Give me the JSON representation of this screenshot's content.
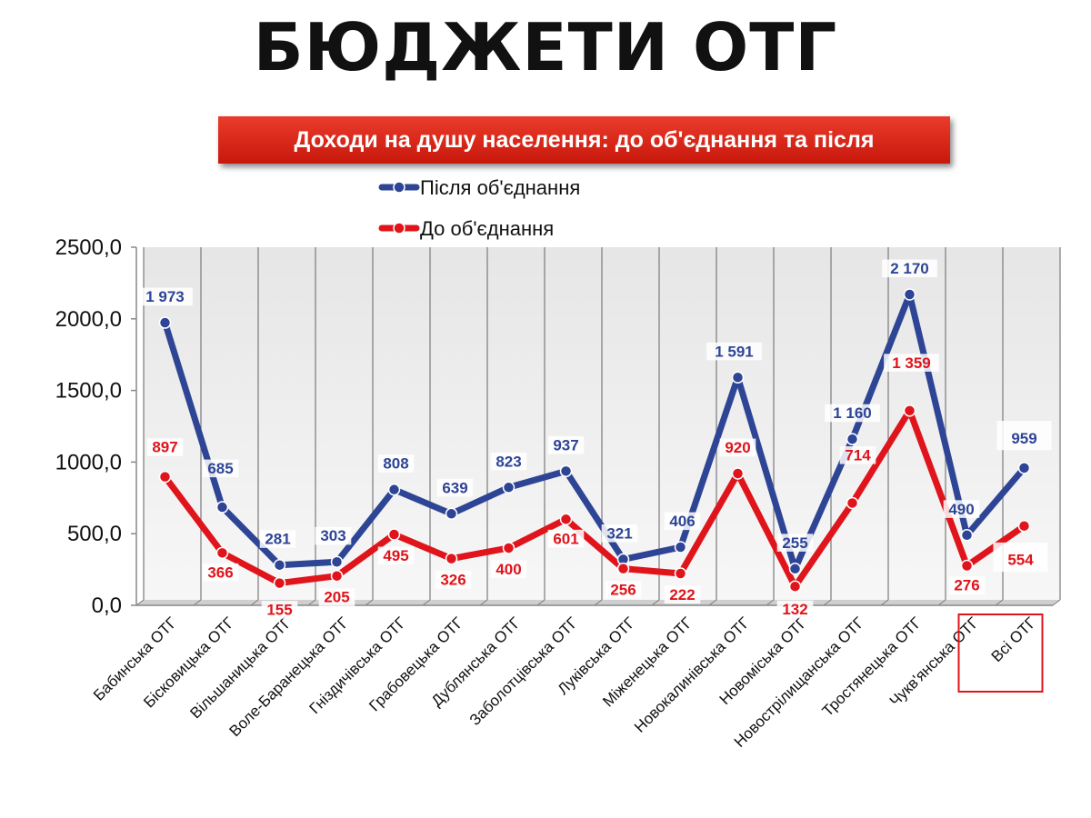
{
  "page": {
    "title": "БЮДЖЕТИ ОТГ",
    "subtitle": "Доходи на душу населення: до об'єднання та після"
  },
  "colors": {
    "after": "#2e4596",
    "before": "#e0141b",
    "grid": "#7a7a7a",
    "highlight_box": "#e0141b"
  },
  "chart_data": {
    "type": "line",
    "title": "Доходи на душу населення: до об'єднання та після",
    "categories": [
      "Бабинська ОТГ",
      "Бісковицька ОТГ",
      "Вільшаницька ОТГ",
      "Воле-Баранецька ОТГ",
      "Гніздичівська ОТГ",
      "Грабовецька ОТГ",
      "Дублянська ОТГ",
      "Заболотцівська ОТГ",
      "Луківська ОТГ",
      "Міженецька ОТГ",
      "Новокалинівська ОТГ",
      "Новоміська ОТГ",
      "Новострілищанська ОТГ",
      "Тростянецька ОТГ",
      "Чукв'янська ОТГ",
      "Всі ОТГ"
    ],
    "series": [
      {
        "name": "Після об'єднання",
        "values": [
          1973,
          685,
          281,
          303,
          808,
          639,
          823,
          937,
          321,
          406,
          1591,
          255,
          1160,
          2170,
          490,
          959
        ],
        "labels": [
          "1 973",
          "685",
          "281",
          "303",
          "808",
          "639",
          "823",
          "937",
          "321",
          "406",
          "1 591",
          "255",
          "1 160",
          "2 170",
          "490",
          "959"
        ]
      },
      {
        "name": "До об'єднання",
        "values": [
          897,
          366,
          155,
          205,
          495,
          326,
          400,
          601,
          256,
          222,
          920,
          132,
          714,
          1359,
          276,
          554
        ],
        "labels": [
          "897",
          "366",
          "155",
          "205",
          "495",
          "326",
          "400",
          "601",
          "256",
          "222",
          "920",
          "132",
          "714",
          "1 359",
          "276",
          "554"
        ]
      }
    ],
    "y_ticks": [
      "0,0",
      "500,0",
      "1000,0",
      "1500,0",
      "2000,0",
      "2500,0"
    ],
    "ylim": [
      0,
      2500
    ],
    "grid": true,
    "legend_position": "top",
    "highlighted_category": "Всі ОТГ"
  }
}
